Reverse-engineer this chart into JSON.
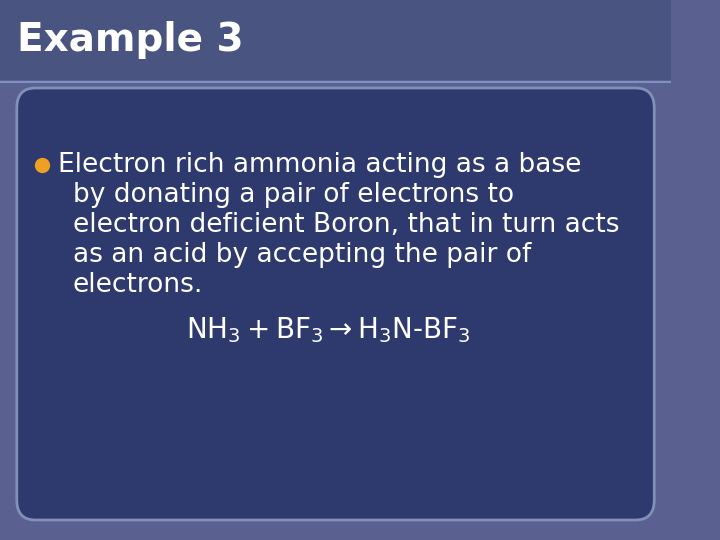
{
  "title": "Example 3",
  "title_bg_color": "#4a5480",
  "main_bg_color": "#2e3a6e",
  "slide_bg_color": "#5a6090",
  "bullet_color": "#f0a020",
  "text_color": "#ffffff",
  "box_border_color": "#8090b8",
  "bullet_text_line1": "Electron rich ammonia acting as a base",
  "bullet_text_line2": "by donating a pair of electrons to",
  "bullet_text_line3": "electron deficient Boron, that in turn acts",
  "bullet_text_line4": "as an acid by accepting the pair of",
  "bullet_text_line5": "electrons.",
  "equation": "NH₃ + BF₃ → H₃N-BF₃",
  "title_fontsize": 28,
  "body_fontsize": 19,
  "eq_fontsize": 20
}
